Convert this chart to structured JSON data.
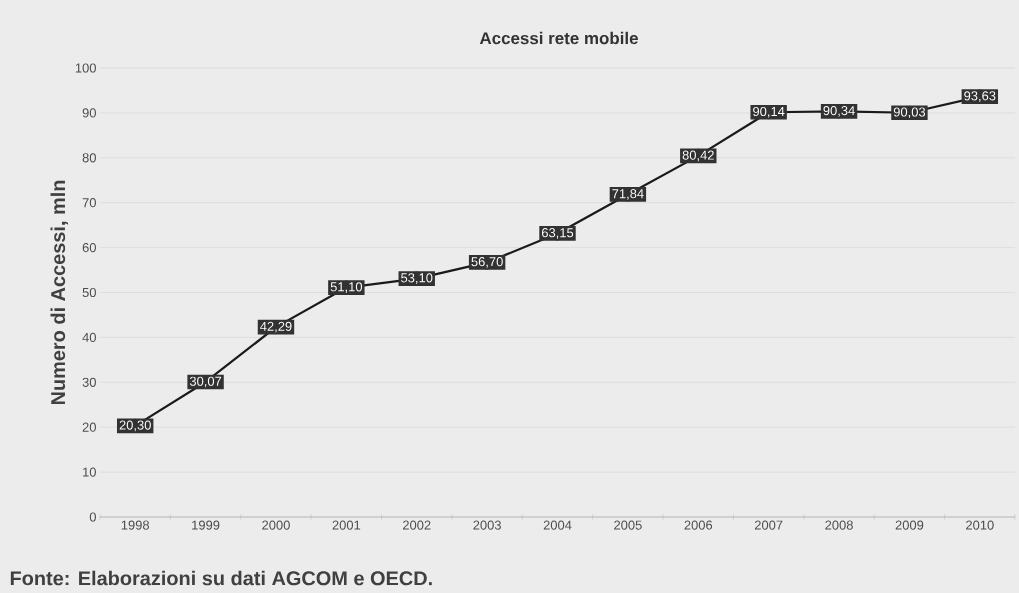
{
  "chart_data": {
    "type": "line",
    "title": "Accessi rete mobile",
    "ylabel": "Numero di Accessi, mln",
    "categories": [
      "1998",
      "1999",
      "2000",
      "2001",
      "2002",
      "2003",
      "2004",
      "2005",
      "2006",
      "2007",
      "2008",
      "2009",
      "2010"
    ],
    "values": [
      20.3,
      30.07,
      42.29,
      51.1,
      53.1,
      56.7,
      63.15,
      71.84,
      80.42,
      90.14,
      90.34,
      90.03,
      93.63
    ],
    "value_labels": [
      "20,30",
      "30,07",
      "42,29",
      "51,10",
      "53,10",
      "56,70",
      "63,15",
      "71,84",
      "80,42",
      "90,14",
      "90,34",
      "90,03",
      "93,63"
    ],
    "color": "#1a1a1a",
    "marker": "circle",
    "line_style": "solid",
    "grid": "y",
    "ylim": [
      0,
      100
    ],
    "yticks": [
      0,
      10,
      20,
      30,
      40,
      50,
      60,
      70,
      80,
      90,
      100
    ],
    "annotations": [
      "Fonte: Elaborazioni su dati AGCOM e OECD."
    ]
  }
}
